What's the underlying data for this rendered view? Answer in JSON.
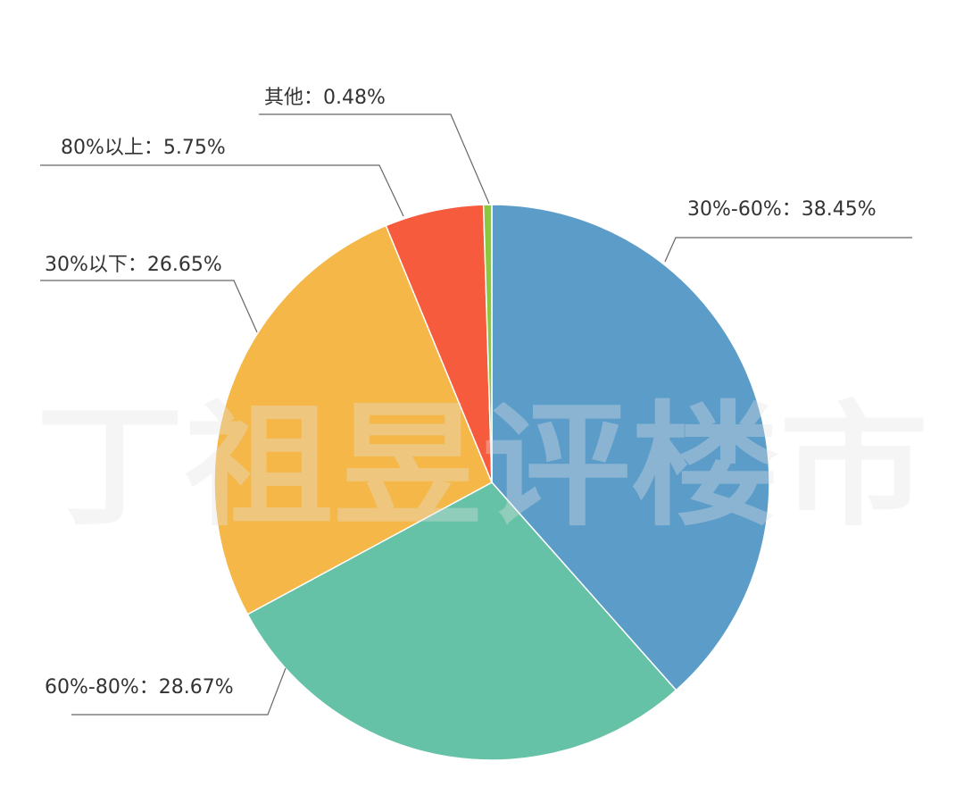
{
  "chart_data": {
    "type": "pie",
    "categories": [
      "30%-60%",
      "60%-80%",
      "30%以下",
      "80%以上",
      "其他"
    ],
    "values": [
      38.45,
      28.67,
      26.65,
      5.75,
      0.48
    ],
    "value_labels": [
      "38.45%",
      "28.67%",
      "26.65%",
      "5.75%",
      "0.48%"
    ],
    "label_separator": "：",
    "colors": [
      "#5b9cc9",
      "#66c2a6",
      "#f4b748",
      "#f55b3c",
      "#8cc83f"
    ],
    "watermark": "丁祖昱评楼市"
  }
}
